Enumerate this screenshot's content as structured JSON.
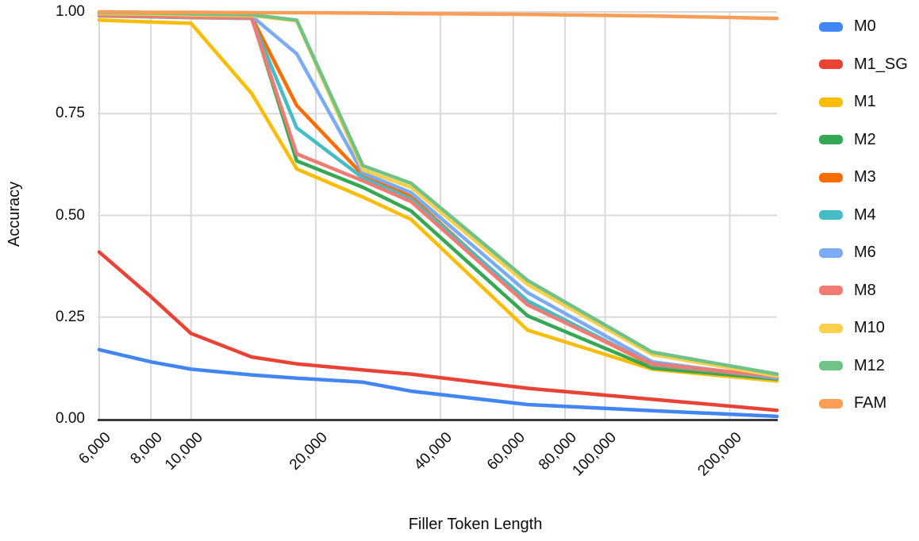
{
  "chart_data": {
    "type": "line",
    "title": "",
    "xlabel": "Filler Token Length",
    "ylabel": "Accuracy",
    "x_scale": "log",
    "grid": true,
    "legend_position": "right",
    "xlim": [
      6000,
      260000
    ],
    "ylim": [
      0,
      1
    ],
    "x": [
      6000,
      8000,
      10000,
      14000,
      18000,
      26000,
      34000,
      65000,
      130000,
      260000
    ],
    "x_ticks": [
      {
        "label": "6,000",
        "value": 6000
      },
      {
        "label": "8,000",
        "value": 8000
      },
      {
        "label": "10,000",
        "value": 10000
      },
      {
        "label": "20,000",
        "value": 20000
      },
      {
        "label": "40,000",
        "value": 40000
      },
      {
        "label": "60,000",
        "value": 60000
      },
      {
        "label": "80,000",
        "value": 80000
      },
      {
        "label": "100,000",
        "value": 100000
      },
      {
        "label": "200,000",
        "value": 200000
      }
    ],
    "y_ticks": [
      {
        "label": "1.00",
        "value": 1.0
      },
      {
        "label": "0.75",
        "value": 0.75
      },
      {
        "label": "0.50",
        "value": 0.5
      },
      {
        "label": "0.25",
        "value": 0.25
      },
      {
        "label": "0.00",
        "value": 0.0
      }
    ],
    "series": [
      {
        "name": "M0",
        "color": "#4285F4",
        "values": [
          0.17,
          0.14,
          0.122,
          0.108,
          0.1,
          0.09,
          0.068,
          0.035,
          0.02,
          0.006
        ]
      },
      {
        "name": "M1_SG",
        "color": "#EA4335",
        "values": [
          0.41,
          0.3,
          0.21,
          0.152,
          0.135,
          0.12,
          0.11,
          0.075,
          0.048,
          0.021
        ]
      },
      {
        "name": "M1",
        "color": "#FBBC04",
        "values": [
          0.98,
          0.975,
          0.972,
          0.8,
          0.614,
          0.545,
          0.49,
          0.218,
          0.122,
          0.093
        ]
      },
      {
        "name": "M2",
        "color": "#34A853",
        "values": [
          0.995,
          0.993,
          0.99,
          0.988,
          0.634,
          0.569,
          0.511,
          0.253,
          0.125,
          0.098
        ]
      },
      {
        "name": "M3",
        "color": "#FF6D01",
        "values": [
          0.995,
          0.993,
          0.991,
          0.988,
          0.77,
          0.599,
          0.546,
          0.285,
          0.132,
          0.102
        ]
      },
      {
        "name": "M4",
        "color": "#46BDC6",
        "values": [
          0.99,
          0.988,
          0.986,
          0.984,
          0.715,
          0.592,
          0.54,
          0.29,
          0.133,
          0.103
        ]
      },
      {
        "name": "M6",
        "color": "#7BAAF7",
        "values": [
          0.996,
          0.994,
          0.992,
          0.99,
          0.897,
          0.604,
          0.556,
          0.31,
          0.14,
          0.1
        ]
      },
      {
        "name": "M8",
        "color": "#F07B72",
        "values": [
          0.991,
          0.989,
          0.987,
          0.985,
          0.651,
          0.585,
          0.534,
          0.28,
          0.135,
          0.104
        ]
      },
      {
        "name": "M10",
        "color": "#FCD04F",
        "values": [
          0.996,
          0.995,
          0.993,
          0.991,
          0.978,
          0.612,
          0.569,
          0.33,
          0.158,
          0.105
        ]
      },
      {
        "name": "M12",
        "color": "#71C287",
        "values": [
          0.998,
          0.997,
          0.995,
          0.993,
          0.98,
          0.622,
          0.579,
          0.34,
          0.164,
          0.11
        ]
      },
      {
        "name": "FAM",
        "color": "#FB9D57",
        "values": [
          1.0,
          0.999,
          0.999,
          0.998,
          0.998,
          0.997,
          0.996,
          0.994,
          0.99,
          0.984
        ]
      }
    ],
    "colors": {
      "gridline": "#DADADA",
      "axis_line": "#3B3B3B",
      "text": "#0E0E0E",
      "background": "#FFFFFF"
    }
  }
}
